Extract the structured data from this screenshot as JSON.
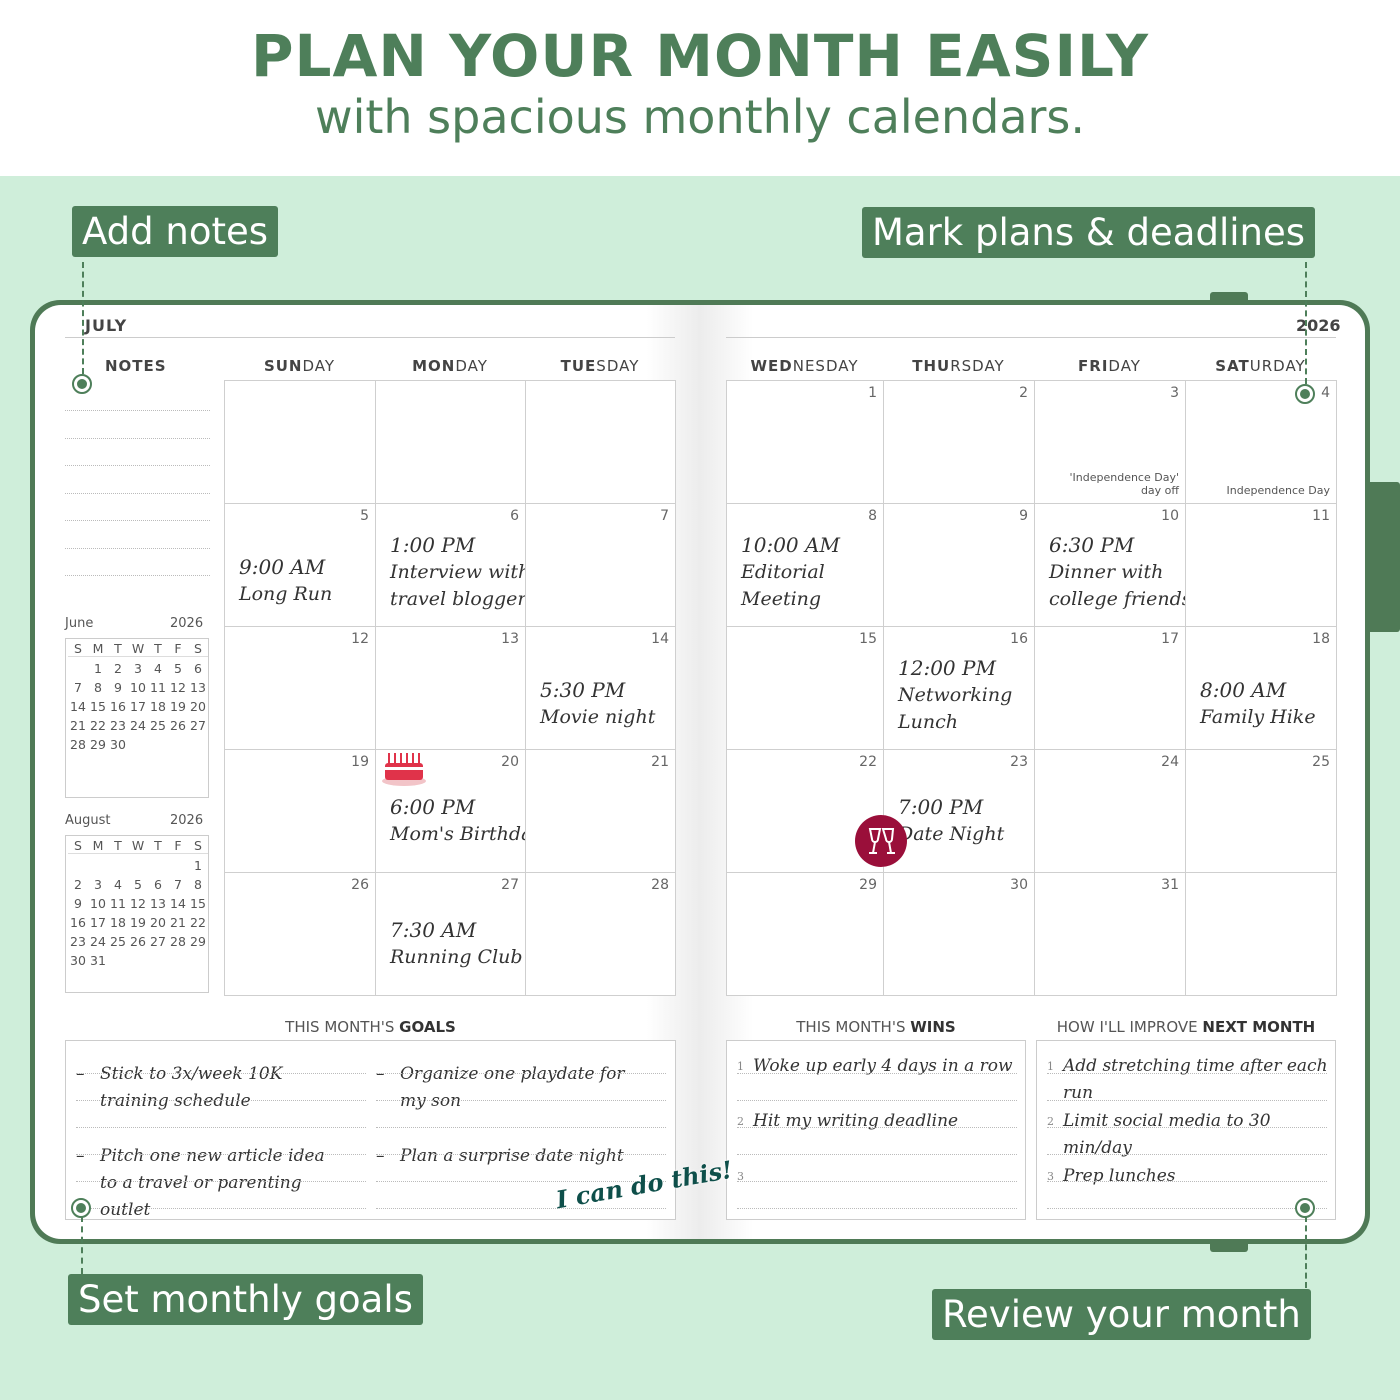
{
  "header": {
    "title": "PLAN YOUR MONTH EASILY",
    "subtitle": "with spacious monthly calendars."
  },
  "callouts": {
    "notes": "Add notes",
    "plans": "Mark plans & deadlines",
    "goals": "Set monthly goals",
    "review": "Review your month"
  },
  "planner": {
    "month": "JULY",
    "year": "2026",
    "notes_label": "NOTES",
    "days": [
      {
        "bold": "SUN",
        "rest": "DAY"
      },
      {
        "bold": "MON",
        "rest": "DAY"
      },
      {
        "bold": "TUE",
        "rest": "SDAY"
      },
      {
        "bold": "WED",
        "rest": "NESDAY"
      },
      {
        "bold": "THU",
        "rest": "RSDAY"
      },
      {
        "bold": "FRI",
        "rest": "DAY"
      },
      {
        "bold": "SAT",
        "rest": "URDAY"
      }
    ],
    "weeks": [
      [
        "",
        "",
        "",
        "1",
        "2",
        "3",
        "4"
      ],
      [
        "5",
        "6",
        "7",
        "8",
        "9",
        "10",
        "11"
      ],
      [
        "12",
        "13",
        "14",
        "15",
        "16",
        "17",
        "18"
      ],
      [
        "19",
        "20",
        "21",
        "22",
        "23",
        "24",
        "25"
      ],
      [
        "26",
        "27",
        "28",
        "29",
        "30",
        "31",
        ""
      ]
    ],
    "events": {
      "5": [
        "9:00 AM",
        "Long Run"
      ],
      "6": [
        "1:00 PM",
        "Interview with",
        "travel blogger"
      ],
      "8": [
        "10:00 AM",
        "Editorial",
        "Meeting"
      ],
      "10": [
        "6:30 PM",
        "Dinner with",
        "college friends"
      ],
      "14": [
        "5:30 PM",
        "Movie night"
      ],
      "16": [
        "12:00 PM",
        "Networking",
        "Lunch"
      ],
      "18": [
        "8:00 AM",
        "Family Hike"
      ],
      "20": [
        "6:00 PM",
        "Mom's Birthday"
      ],
      "23": [
        "7:00 PM",
        "Date Night"
      ],
      "27": [
        "7:30 AM",
        "Running Club"
      ]
    },
    "holidays": {
      "3": "'Independence Day' day off",
      "4": "Independence Day"
    },
    "mini": [
      {
        "month": "June",
        "year": "2026",
        "offset": 1,
        "days": 30
      },
      {
        "month": "August",
        "year": "2026",
        "offset": 6,
        "days": 31
      }
    ],
    "mini_head": [
      "S",
      "M",
      "T",
      "W",
      "T",
      "F",
      "S"
    ]
  },
  "goals": {
    "label": "THIS MONTH'S",
    "bold": "GOALS",
    "items": [
      "Stick to 3x/week 10K training schedule",
      "Organize one playdate for my son",
      "Pitch one new article idea to a travel or parenting outlet",
      "Plan a surprise date night"
    ],
    "bullet": "–"
  },
  "wins": {
    "label": "THIS MONTH'S",
    "bold": "WINS",
    "items": [
      "Woke up early 4 days in a row",
      "Hit my writing deadline",
      ""
    ]
  },
  "improve": {
    "label": "HOW I'LL IMPROVE",
    "bold": "NEXT MONTH",
    "items": [
      "Add stretching time after each run",
      "Limit social media to 30 min/day",
      "Prep lunches"
    ]
  },
  "sticker": "I can do this!",
  "icons": {
    "cake": "birthday-cake-icon",
    "wine": "wine-glasses-icon"
  },
  "colors": {
    "brand": "#4e7f5a",
    "background": "#cfeeda",
    "wine": "#9a0f3a",
    "cake": "#e0334a"
  }
}
